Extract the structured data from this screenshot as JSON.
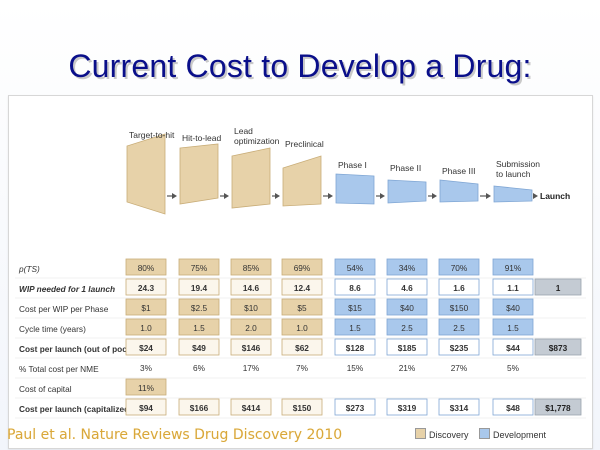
{
  "slide": {
    "title": "Current Cost to Develop a Drug:",
    "citation": "Paul et al. Nature Reviews Drug Discovery 2010"
  },
  "colors": {
    "discovery_fill": "#e7d2a9",
    "discovery_stroke": "#c9ad78",
    "development_fill": "#a9c8ec",
    "development_stroke": "#7fa6d4",
    "launch_fill": "#c4cbd3",
    "title": "#0a0f8a"
  },
  "phases": [
    {
      "label": [
        "Target-to-hit"
      ],
      "kind": "discovery"
    },
    {
      "label": [
        "Hit-to-lead"
      ],
      "kind": "discovery"
    },
    {
      "label": [
        "Lead",
        "optimization"
      ],
      "kind": "discovery"
    },
    {
      "label": [
        "Preclinical"
      ],
      "kind": "discovery"
    },
    {
      "label": [
        "Phase I"
      ],
      "kind": "development"
    },
    {
      "label": [
        "Phase II"
      ],
      "kind": "development"
    },
    {
      "label": [
        "Phase III"
      ],
      "kind": "development"
    },
    {
      "label": [
        "Submission",
        "to launch"
      ],
      "kind": "development"
    }
  ],
  "launch_label": "Launch",
  "table": {
    "rows": [
      {
        "label": "p(TS)",
        "style": "italic",
        "values": [
          "80%",
          "75%",
          "85%",
          "69%",
          "54%",
          "34%",
          "70%",
          "91%"
        ],
        "total": ""
      },
      {
        "label": "WIP needed for 1 launch",
        "style": "bold-italic",
        "values": [
          "24.3",
          "19.4",
          "14.6",
          "12.4",
          "8.6",
          "4.6",
          "1.6",
          "1.1"
        ],
        "total": "1"
      },
      {
        "label": "Cost per WIP per Phase",
        "style": "normal",
        "values": [
          "$1",
          "$2.5",
          "$10",
          "$5",
          "$15",
          "$40",
          "$150",
          "$40"
        ],
        "total": ""
      },
      {
        "label": "Cycle time (years)",
        "style": "normal",
        "values": [
          "1.0",
          "1.5",
          "2.0",
          "1.0",
          "1.5",
          "2.5",
          "2.5",
          "1.5"
        ],
        "total": ""
      },
      {
        "label": "Cost per launch (out of pocket)",
        "style": "bold",
        "values": [
          "$24",
          "$49",
          "$146",
          "$62",
          "$128",
          "$185",
          "$235",
          "$44"
        ],
        "total": "$873"
      },
      {
        "label": "% Total cost per NME",
        "style": "normal",
        "values": [
          "3%",
          "6%",
          "17%",
          "7%",
          "15%",
          "21%",
          "27%",
          "5%"
        ],
        "total": ""
      },
      {
        "label": "Cost of capital",
        "style": "normal",
        "values": [
          "11%",
          "",
          "",
          "",
          "",
          "",
          "",
          ""
        ],
        "total": ""
      },
      {
        "label": "Cost per launch (capitalized)",
        "style": "bold",
        "values": [
          "$94",
          "$166",
          "$414",
          "$150",
          "$273",
          "$319",
          "$314",
          "$48"
        ],
        "total": "$1,778"
      }
    ],
    "boxed_rows": [
      0,
      1,
      2,
      3,
      4,
      7
    ],
    "shaded_development_rows": [
      0,
      2,
      3
    ]
  },
  "legend": {
    "discovery": "Discovery",
    "development": "Development"
  }
}
